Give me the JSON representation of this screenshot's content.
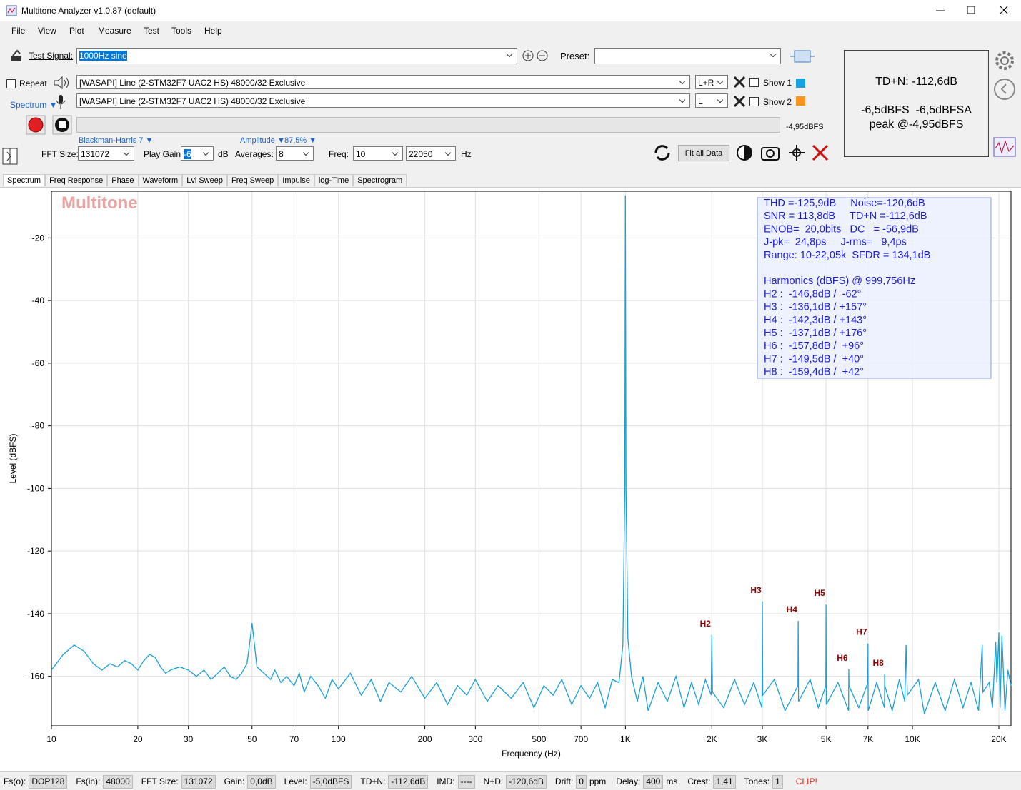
{
  "window": {
    "title": "Multitone Analyzer v1.0.87 (default)"
  },
  "menu": [
    "File",
    "View",
    "Plot",
    "Measure",
    "Test",
    "Tools",
    "Help"
  ],
  "toolbar": {
    "test_signal_label": "Test Signal:",
    "test_signal": "1000Hz sine",
    "preset_label": "Preset:",
    "repeat": "Repeat",
    "output_device": "[WASAPI] Line (2-STM32F7 UAC2 HS) 48000/32 Exclusive",
    "output_channel": "L+R",
    "show1": "Show 1",
    "input_device": "[WASAPI] Line (2-STM32F7 UAC2 HS) 48000/32 Exclusive",
    "input_channel": "L",
    "show2": "Show 2",
    "mode": "Spectrum ▼",
    "level": "-4,95dBFS",
    "window_fn": "Blackman-Harris 7 ▼",
    "amplitude_label": "Amplitude ▼",
    "amplitude": "87,5% ▼",
    "fft_size_label": "FFT Size:",
    "fft_size": "131072",
    "play_gain_label": "Play Gain:",
    "play_gain": "-6",
    "play_gain_unit": "dB",
    "averages_label": "Averages:",
    "averages": "8",
    "freq_label": "Freq:",
    "freq_from": "10",
    "freq_to": "22050",
    "freq_unit": "Hz",
    "fit_all": "Fit all Data"
  },
  "result": {
    "tdn": "TD+N: -112,6dB",
    "level": "-6,5dBFS  -6,5dBFSA",
    "peak": "peak @-4,95dBFS"
  },
  "tabs": [
    "Spectrum",
    "Freq Response",
    "Phase",
    "Waveform",
    "Lvl Sweep",
    "Freq Sweep",
    "Impulse",
    "log-Time",
    "Spectrogram"
  ],
  "status_bar": [
    {
      "label": "Fs(o):",
      "value": "DOP128"
    },
    {
      "label": "Fs(in):",
      "value": "48000"
    },
    {
      "label": "FFT Size:",
      "value": "131072"
    },
    {
      "label": "Gain:",
      "value": "0,0dB"
    },
    {
      "label": "Level:",
      "value": "-5,0dBFS"
    },
    {
      "label": "TD+N:",
      "value": "-112,6dB"
    },
    {
      "label": "IMD:",
      "value": "----"
    },
    {
      "label": "N+D:",
      "value": "-120,6dB"
    },
    {
      "label": "Drift:",
      "value": "0",
      "unit": "ppm"
    },
    {
      "label": "Delay:",
      "value": "400",
      "unit": "ms"
    },
    {
      "label": "Crest:",
      "value": "1,41"
    },
    {
      "label": "Tones:",
      "value": "1"
    }
  ],
  "status_clip": "CLIP!",
  "chart_data": {
    "type": "line",
    "watermark": "Multitone",
    "xlabel": "Frequency (Hz)",
    "ylabel": "Level (dBFS)",
    "xscale": "log",
    "xlim": [
      10,
      22050
    ],
    "ylim": [
      -175.8,
      -5.1
    ],
    "grid": true,
    "xticks": [
      10,
      20,
      30,
      50,
      70,
      100,
      200,
      300,
      500,
      700,
      {
        "value": 1000,
        "label": "1K"
      },
      {
        "value": 2000,
        "label": "2K"
      },
      {
        "value": 3000,
        "label": "3K"
      },
      {
        "value": 5000,
        "label": "5K"
      },
      {
        "value": 7000,
        "label": "7K"
      },
      {
        "value": 10000,
        "label": "10K"
      },
      {
        "value": 20000,
        "label": "20K"
      }
    ],
    "yticks": [
      -20,
      -40,
      -60,
      -80,
      -100,
      -120,
      -140,
      -160
    ],
    "x": [
      10,
      11,
      12,
      13,
      14,
      15,
      16,
      17,
      18,
      19,
      20,
      21,
      22,
      23,
      24,
      25,
      26,
      28,
      30,
      32,
      34,
      36,
      38,
      40,
      42,
      44,
      46,
      48,
      49,
      50,
      51,
      52,
      55,
      58,
      60,
      63,
      66,
      70,
      73,
      76,
      80,
      85,
      90,
      95,
      100,
      110,
      120,
      130,
      140,
      150,
      165,
      180,
      200,
      220,
      240,
      260,
      280,
      300,
      330,
      360,
      400,
      440,
      480,
      520,
      560,
      600,
      650,
      700,
      750,
      800,
      850,
      900,
      950,
      980,
      995,
      999.756,
      1005,
      1020,
      1050,
      1100,
      1150,
      1200,
      1300,
      1400,
      1500,
      1600,
      1700,
      1800,
      1900,
      1990,
      2000,
      2010,
      2200,
      2400,
      2600,
      2800,
      2990,
      3000,
      3010,
      3300,
      3600,
      3990,
      4000,
      4010,
      4400,
      4700,
      4990,
      5000,
      5010,
      5500,
      5990,
      6000,
      6010,
      6500,
      6990,
      7000,
      7010,
      7500,
      7990,
      8000,
      8010,
      8500,
      9000,
      9400,
      9500,
      9600,
      10500,
      11000,
      12000,
      13000,
      14000,
      15000,
      16000,
      17000,
      17500,
      17600,
      18500,
      19000,
      19500,
      19700,
      20000,
      20200,
      20500,
      21000,
      21500,
      22050
    ],
    "series": [
      {
        "color": "#1a9fd8",
        "values": [
          -158,
          -153,
          -150,
          -152,
          -156,
          -158,
          -156,
          -157,
          -155,
          -156,
          -158,
          -155,
          -153,
          -154,
          -157,
          -159,
          -158,
          -157,
          -158,
          -160,
          -158,
          -161,
          -159,
          -157,
          -160,
          -161,
          -159,
          -156,
          -150,
          -143,
          -150,
          -157,
          -159,
          -161,
          -158,
          -162,
          -160,
          -163,
          -159,
          -165,
          -160,
          -163,
          -167,
          -161,
          -164,
          -159,
          -166,
          -161,
          -168,
          -162,
          -165,
          -160,
          -167,
          -162,
          -169,
          -163,
          -166,
          -161,
          -168,
          -163,
          -167,
          -162,
          -170,
          -163,
          -166,
          -161,
          -169,
          -163,
          -167,
          -162,
          -170,
          -161,
          -162,
          -150,
          -100,
          -6.5,
          -100,
          -148,
          -160,
          -168,
          -160,
          -171,
          -162,
          -168,
          -160,
          -170,
          -162,
          -169,
          -161,
          -166,
          -146.8,
          -165,
          -170,
          -161,
          -169,
          -162,
          -170,
          -136.1,
          -166,
          -161,
          -171,
          -163,
          -142.3,
          -168,
          -161,
          -170,
          -163,
          -137.1,
          -169,
          -162,
          -171,
          -157.8,
          -163,
          -170,
          -162,
          -149.5,
          -171,
          -162,
          -170,
          -159.4,
          -163,
          -171,
          -161,
          -168,
          -150,
          -166,
          -161,
          -172,
          -162,
          -171,
          -161,
          -170,
          -162,
          -171,
          -150,
          -165,
          -162,
          -170,
          -149,
          -162,
          -146,
          -170,
          -147,
          -171,
          -158,
          -163
        ]
      }
    ],
    "annotations": [
      {
        "text": "H2",
        "x": 2000,
        "y": -146.8
      },
      {
        "text": "H3",
        "x": 3000,
        "y": -136.1
      },
      {
        "text": "H4",
        "x": 4000,
        "y": -142.3
      },
      {
        "text": "H5",
        "x": 5000,
        "y": -137.1
      },
      {
        "text": "H6",
        "x": 6000,
        "y": -157.8
      },
      {
        "text": "H7",
        "x": 7000,
        "y": -149.5
      },
      {
        "text": "H8",
        "x": 8000,
        "y": -159.4
      }
    ],
    "measurements": [
      "THD =-125,9dB     Noise=-120,6dB",
      "SNR = 113,8dB     TD+N =-112,6dB",
      "ENOB=  20,0bits   DC   = -56,9dB",
      "J-pk=  24,8ps     J-rms=   9,4ps",
      "Range: 10-22,05k  SFDR = 134,1dB"
    ],
    "harmonics_title": "Harmonics (dBFS) @ 999,756Hz",
    "harmonics": [
      "H2 :  -146,8dB /  -62°",
      "H3 :  -136,1dB / +157°",
      "H4 :  -142,3dB / +143°",
      "H5 :  -137,1dB / +176°",
      "H6 :  -157,8dB /  +96°",
      "H7 :  -149,5dB /  +40°",
      "H8 :  -159,4dB /  +42°"
    ]
  }
}
